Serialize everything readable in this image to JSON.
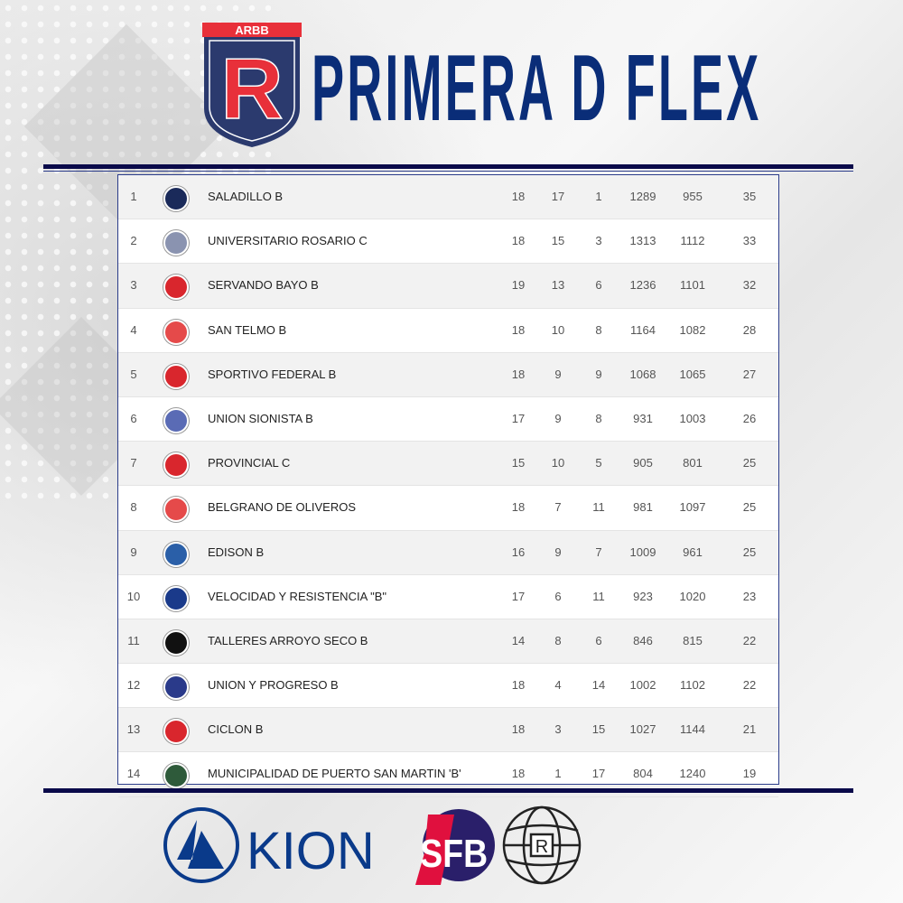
{
  "header": {
    "logo_text": "ARBB",
    "logo_letter": "R",
    "title": "PRIMERA D FLEX"
  },
  "colors": {
    "navy": "#0a2d78",
    "rule": "#0a0a4a",
    "red": "#e8303a"
  },
  "standings": [
    {
      "pos": "1",
      "team": "SALADILLO B",
      "c1": "18",
      "c2": "17",
      "c3": "1",
      "c4": "1289",
      "c5": "955",
      "c6": "35",
      "crest": "#1a2a5a"
    },
    {
      "pos": "2",
      "team": "UNIVERSITARIO ROSARIO C",
      "c1": "18",
      "c2": "15",
      "c3": "3",
      "c4": "1313",
      "c5": "1112",
      "c6": "33",
      "crest": "#8a93b0"
    },
    {
      "pos": "3",
      "team": "SERVANDO BAYO B",
      "c1": "19",
      "c2": "13",
      "c3": "6",
      "c4": "1236",
      "c5": "1101",
      "c6": "32",
      "crest": "#d9262d"
    },
    {
      "pos": "4",
      "team": "SAN TELMO B",
      "c1": "18",
      "c2": "10",
      "c3": "8",
      "c4": "1164",
      "c5": "1082",
      "c6": "28",
      "crest": "#e54a4a"
    },
    {
      "pos": "5",
      "team": "SPORTIVO FEDERAL B",
      "c1": "18",
      "c2": "9",
      "c3": "9",
      "c4": "1068",
      "c5": "1065",
      "c6": "27",
      "crest": "#d9262d"
    },
    {
      "pos": "6",
      "team": "UNION SIONISTA B",
      "c1": "17",
      "c2": "9",
      "c3": "8",
      "c4": "931",
      "c5": "1003",
      "c6": "26",
      "crest": "#5a6bb5"
    },
    {
      "pos": "7",
      "team": "PROVINCIAL C",
      "c1": "15",
      "c2": "10",
      "c3": "5",
      "c4": "905",
      "c5": "801",
      "c6": "25",
      "crest": "#d9262d"
    },
    {
      "pos": "8",
      "team": "BELGRANO DE OLIVEROS",
      "c1": "18",
      "c2": "7",
      "c3": "11",
      "c4": "981",
      "c5": "1097",
      "c6": "25",
      "crest": "#e54a4a"
    },
    {
      "pos": "9",
      "team": "EDISON B",
      "c1": "16",
      "c2": "9",
      "c3": "7",
      "c4": "1009",
      "c5": "961",
      "c6": "25",
      "crest": "#2a5fa8"
    },
    {
      "pos": "10",
      "team": "VELOCIDAD Y RESISTENCIA \"B\"",
      "c1": "17",
      "c2": "6",
      "c3": "11",
      "c4": "923",
      "c5": "1020",
      "c6": "23",
      "crest": "#1a3a8a"
    },
    {
      "pos": "11",
      "team": "TALLERES ARROYO SECO B",
      "c1": "14",
      "c2": "8",
      "c3": "6",
      "c4": "846",
      "c5": "815",
      "c6": "22",
      "crest": "#111111"
    },
    {
      "pos": "12",
      "team": "UNION Y PROGRESO B",
      "c1": "18",
      "c2": "4",
      "c3": "14",
      "c4": "1002",
      "c5": "1102",
      "c6": "22",
      "crest": "#2a3a8a"
    },
    {
      "pos": "13",
      "team": "CICLON B",
      "c1": "18",
      "c2": "3",
      "c3": "15",
      "c4": "1027",
      "c5": "1144",
      "c6": "21",
      "crest": "#d9262d"
    },
    {
      "pos": "14",
      "team": "MUNICIPALIDAD DE PUERTO SAN MARTIN 'B'",
      "c1": "18",
      "c2": "1",
      "c3": "17",
      "c4": "804",
      "c5": "1240",
      "c6": "19",
      "crest": "#2e5a3a"
    }
  ],
  "sponsors": {
    "kion": "KION",
    "sfb": "SFB",
    "globe_letter": "R"
  }
}
